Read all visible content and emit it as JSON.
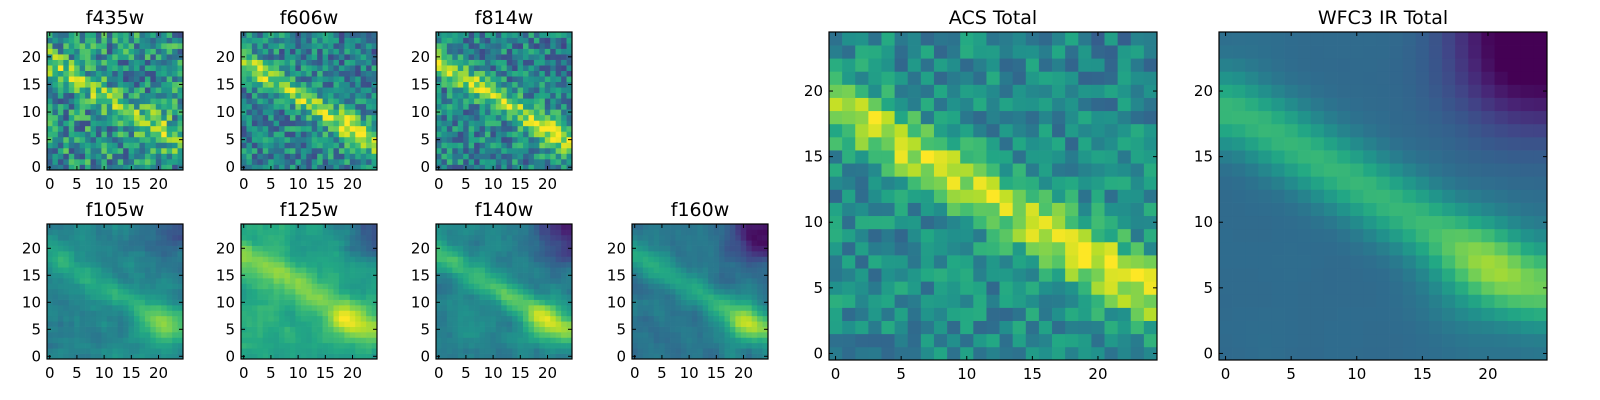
{
  "chart_data": {
    "type": "heatmap",
    "colormap": "viridis",
    "grid": false,
    "pixels_per_side": 25,
    "panels": [
      {
        "key": "f435w",
        "title": "f435w",
        "xticks": [
          0,
          5,
          10,
          15,
          20
        ],
        "yticks": [
          0,
          5,
          10,
          15,
          20
        ],
        "xlim": [
          -0.5,
          24.5
        ],
        "ylim": [
          -0.5,
          24.5
        ]
      },
      {
        "key": "f606w",
        "title": "f606w",
        "xticks": [
          0,
          5,
          10,
          15,
          20
        ],
        "yticks": [
          0,
          5,
          10,
          15,
          20
        ],
        "xlim": [
          -0.5,
          24.5
        ],
        "ylim": [
          -0.5,
          24.5
        ]
      },
      {
        "key": "f814w",
        "title": "f814w",
        "xticks": [
          0,
          5,
          10,
          15,
          20
        ],
        "yticks": [
          0,
          5,
          10,
          15,
          20
        ],
        "xlim": [
          -0.5,
          24.5
        ],
        "ylim": [
          -0.5,
          24.5
        ]
      },
      {
        "key": "f105w",
        "title": "f105w",
        "xticks": [
          0,
          5,
          10,
          15,
          20
        ],
        "yticks": [
          0,
          5,
          10,
          15,
          20
        ],
        "xlim": [
          -0.5,
          24.5
        ],
        "ylim": [
          -0.5,
          24.5
        ]
      },
      {
        "key": "f125w",
        "title": "f125w",
        "xticks": [
          0,
          5,
          10,
          15,
          20
        ],
        "yticks": [
          0,
          5,
          10,
          15,
          20
        ],
        "xlim": [
          -0.5,
          24.5
        ],
        "ylim": [
          -0.5,
          24.5
        ]
      },
      {
        "key": "f140w",
        "title": "f140w",
        "xticks": [
          0,
          5,
          10,
          15,
          20
        ],
        "yticks": [
          0,
          5,
          10,
          15,
          20
        ],
        "xlim": [
          -0.5,
          24.5
        ],
        "ylim": [
          -0.5,
          24.5
        ]
      },
      {
        "key": "f160w",
        "title": "f160w",
        "xticks": [
          0,
          5,
          10,
          15,
          20
        ],
        "yticks": [
          0,
          5,
          10,
          15,
          20
        ],
        "xlim": [
          -0.5,
          24.5
        ],
        "ylim": [
          -0.5,
          24.5
        ]
      },
      {
        "key": "acs",
        "title": "ACS Total",
        "xticks": [
          0,
          5,
          10,
          15,
          20
        ],
        "yticks": [
          0,
          5,
          10,
          15,
          20
        ],
        "xlim": [
          -0.5,
          24.5
        ],
        "ylim": [
          -0.5,
          24.5
        ]
      },
      {
        "key": "wfc3",
        "title": "WFC3 IR Total",
        "xticks": [
          0,
          5,
          10,
          15,
          20
        ],
        "yticks": [
          0,
          5,
          10,
          15,
          20
        ],
        "xlim": [
          -0.5,
          24.5
        ],
        "ylim": [
          -0.5,
          24.5
        ]
      }
    ]
  }
}
